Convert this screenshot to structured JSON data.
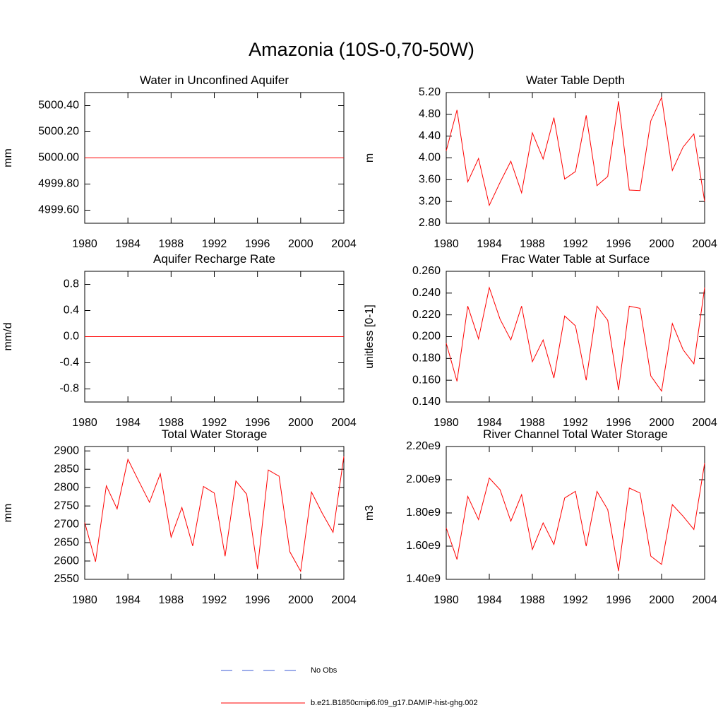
{
  "title": "Amazonia (10S-0,70-50W)",
  "legend": [
    {
      "name": "No Obs",
      "color": "#3b5bd6",
      "dash": true
    },
    {
      "name": "b.e21.B1850cmip6.f09_g17.DAMIP-hist-ghg.002",
      "color": "#ff0000",
      "dash": false
    }
  ],
  "chart_data": [
    {
      "type": "line",
      "title": "Water in Unconfined Aquifer",
      "ylabel": "mm",
      "color": "#ff0000",
      "x": [
        1980,
        1981,
        1982,
        1983,
        1984,
        1985,
        1986,
        1987,
        1988,
        1989,
        1990,
        1991,
        1992,
        1993,
        1994,
        1995,
        1996,
        1997,
        1998,
        1999,
        2000,
        2001,
        2002,
        2003,
        2004
      ],
      "values": [
        5000,
        5000,
        5000,
        5000,
        5000,
        5000,
        5000,
        5000,
        5000,
        5000,
        5000,
        5000,
        5000,
        5000,
        5000,
        5000,
        5000,
        5000,
        5000,
        5000,
        5000,
        5000,
        5000,
        5000,
        5000
      ],
      "xlim": [
        1980,
        2004
      ],
      "xticks": [
        1980,
        1984,
        1988,
        1992,
        1996,
        2000,
        2004
      ],
      "ylim": [
        4999.5,
        5000.5
      ],
      "yticks": [
        {
          "value": 4999.6,
          "label": "4999.60"
        },
        {
          "value": 4999.8,
          "label": "4999.80"
        },
        {
          "value": 5000,
          "label": "5000.00"
        },
        {
          "value": 5000.2,
          "label": "5000.20"
        },
        {
          "value": 5000.4,
          "label": "5000.40"
        }
      ]
    },
    {
      "type": "line",
      "title": "Water Table Depth",
      "ylabel": "m",
      "color": "#ff0000",
      "x": [
        1980,
        1981,
        1982,
        1983,
        1984,
        1985,
        1986,
        1987,
        1988,
        1989,
        1990,
        1991,
        1992,
        1993,
        1994,
        1995,
        1996,
        1997,
        1998,
        1999,
        2000,
        2001,
        2002,
        2003,
        2004
      ],
      "values": [
        4.13,
        4.88,
        3.56,
        3.99,
        3.13,
        3.55,
        3.94,
        3.36,
        4.46,
        3.98,
        4.74,
        3.61,
        3.75,
        4.78,
        3.49,
        3.66,
        5.04,
        3.41,
        3.4,
        4.68,
        5.11,
        3.77,
        4.2,
        4.44,
        3.2
      ],
      "xlim": [
        1980,
        2004
      ],
      "xticks": [
        1980,
        1984,
        1988,
        1992,
        1996,
        2000,
        2004
      ],
      "ylim": [
        2.8,
        5.2
      ],
      "yticks": [
        {
          "value": 2.8,
          "label": "2.80"
        },
        {
          "value": 3.2,
          "label": "3.20"
        },
        {
          "value": 3.6,
          "label": "3.60"
        },
        {
          "value": 4.0,
          "label": "4.00"
        },
        {
          "value": 4.4,
          "label": "4.40"
        },
        {
          "value": 4.8,
          "label": "4.80"
        },
        {
          "value": 5.2,
          "label": "5.20"
        }
      ]
    },
    {
      "type": "line",
      "title": "Aquifer Recharge Rate",
      "ylabel": "mm/d",
      "color": "#ff0000",
      "x": [
        1980,
        1981,
        1982,
        1983,
        1984,
        1985,
        1986,
        1987,
        1988,
        1989,
        1990,
        1991,
        1992,
        1993,
        1994,
        1995,
        1996,
        1997,
        1998,
        1999,
        2000,
        2001,
        2002,
        2003,
        2004
      ],
      "values": [
        0,
        0,
        0,
        0,
        0,
        0,
        0,
        0,
        0,
        0,
        0,
        0,
        0,
        0,
        0,
        0,
        0,
        0,
        0,
        0,
        0,
        0,
        0,
        0,
        0
      ],
      "xlim": [
        1980,
        2004
      ],
      "xticks": [
        1980,
        1984,
        1988,
        1992,
        1996,
        2000,
        2004
      ],
      "ylim": [
        -1,
        1
      ],
      "yticks": [
        -0.8,
        -0.4,
        {
          "value": 0,
          "label": "0.0"
        },
        0.4,
        0.8
      ]
    },
    {
      "type": "line",
      "title": "Frac Water Table at Surface",
      "ylabel": "unitless [0-1]",
      "color": "#ff0000",
      "x": [
        1980,
        1981,
        1982,
        1983,
        1984,
        1985,
        1986,
        1987,
        1988,
        1989,
        1990,
        1991,
        1992,
        1993,
        1994,
        1995,
        1996,
        1997,
        1998,
        1999,
        2000,
        2001,
        2002,
        2003,
        2004
      ],
      "values": [
        0.194,
        0.159,
        0.228,
        0.198,
        0.245,
        0.216,
        0.197,
        0.228,
        0.177,
        0.197,
        0.162,
        0.219,
        0.21,
        0.16,
        0.228,
        0.215,
        0.151,
        0.228,
        0.226,
        0.164,
        0.15,
        0.212,
        0.188,
        0.175,
        0.245
      ],
      "xlim": [
        1980,
        2004
      ],
      "xticks": [
        1980,
        1984,
        1988,
        1992,
        1996,
        2000,
        2004
      ],
      "ylim": [
        0.14,
        0.26
      ],
      "yticks": [
        {
          "value": 0.14,
          "label": "0.140"
        },
        {
          "value": 0.16,
          "label": "0.160"
        },
        {
          "value": 0.18,
          "label": "0.180"
        },
        {
          "value": 0.2,
          "label": "0.200"
        },
        {
          "value": 0.22,
          "label": "0.220"
        },
        {
          "value": 0.24,
          "label": "0.240"
        },
        {
          "value": 0.26,
          "label": "0.260"
        }
      ]
    },
    {
      "type": "line",
      "title": "Total Water Storage",
      "ylabel": "mm",
      "color": "#ff0000",
      "x": [
        1980,
        1981,
        1982,
        1983,
        1984,
        1985,
        1986,
        1987,
        1988,
        1989,
        1990,
        1991,
        1992,
        1993,
        1994,
        1995,
        1996,
        1997,
        1998,
        1999,
        2000,
        2001,
        2002,
        2003,
        2004
      ],
      "values": [
        2705,
        2598,
        2805,
        2742,
        2877,
        2818,
        2760,
        2838,
        2665,
        2746,
        2641,
        2803,
        2785,
        2613,
        2818,
        2782,
        2578,
        2848,
        2831,
        2625,
        2572,
        2788,
        2730,
        2678,
        2885
      ],
      "xlim": [
        1980,
        2004
      ],
      "xticks": [
        1980,
        1984,
        1988,
        1992,
        1996,
        2000,
        2004
      ],
      "ylim": [
        2550,
        2912
      ],
      "yticks": [
        2550,
        2600,
        2650,
        2700,
        2750,
        2800,
        2850,
        2900
      ]
    },
    {
      "type": "line",
      "title": "River Channel Total Water Storage",
      "ylabel": "m3",
      "color": "#ff0000",
      "x": [
        1980,
        1981,
        1982,
        1983,
        1984,
        1985,
        1986,
        1987,
        1988,
        1989,
        1990,
        1991,
        1992,
        1993,
        1994,
        1995,
        1996,
        1997,
        1998,
        1999,
        2000,
        2001,
        2002,
        2003,
        2004
      ],
      "values": [
        1710000000,
        1520000000,
        1900000000,
        1760000000,
        2010000000,
        1940000000,
        1750000000,
        1910000000,
        1580000000,
        1740000000,
        1610000000,
        1890000000,
        1930000000,
        1600000000,
        1930000000,
        1820000000,
        1450000000,
        1950000000,
        1920000000,
        1540000000,
        1490000000,
        1850000000,
        1780000000,
        1700000000,
        2100000000
      ],
      "xlim": [
        1980,
        2004
      ],
      "xticks": [
        1980,
        1984,
        1988,
        1992,
        1996,
        2000,
        2004
      ],
      "ylim": [
        1400000000,
        2200000000
      ],
      "yticks": [
        {
          "value": 1400000000,
          "label": "1.40e9"
        },
        {
          "value": 1600000000,
          "label": "1.60e9"
        },
        {
          "value": 1800000000,
          "label": "1.80e9"
        },
        {
          "value": 2000000000,
          "label": "2.00e9"
        },
        {
          "value": 2200000000,
          "label": "2.20e9"
        }
      ]
    }
  ]
}
